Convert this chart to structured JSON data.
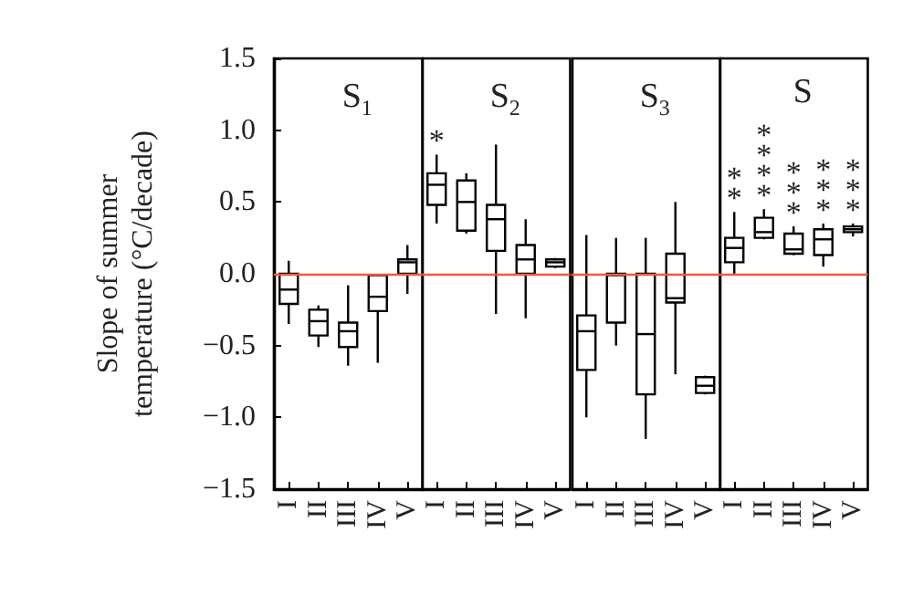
{
  "chart_data": [
    {
      "type": "box",
      "title": "S$_{1}$",
      "ylabel": "Slope of summer temperature (°C/decade)",
      "categories": [
        "I",
        "II",
        "III",
        "IV",
        "V"
      ],
      "color": "#000000",
      "ylim": [
        -1.5,
        1.5
      ],
      "yticks": [
        -1.5,
        {
          "value": -1.0,
          "label": "−1.0"
        },
        -0.5,
        {
          "value": 0,
          "label": "0.0"
        },
        0.5,
        {
          "value": 1,
          "label": "1.0"
        },
        1.5
      ],
      "ref_lines": [
        {
          "axis": "y",
          "value": 0,
          "color": "#f05a3c"
        }
      ],
      "boxes": [
        {
          "low": -0.35,
          "q1": -0.21,
          "median": -0.11,
          "q3": 0.0,
          "high": 0.09
        },
        {
          "low": -0.51,
          "q1": -0.43,
          "median": -0.33,
          "q3": -0.25,
          "high": -0.22
        },
        {
          "low": -0.64,
          "q1": -0.51,
          "median": -0.4,
          "q3": -0.34,
          "high": -0.08
        },
        {
          "low": -0.62,
          "q1": -0.26,
          "median": -0.16,
          "q3": -0.01,
          "high": 0.0
        },
        {
          "low": -0.14,
          "q1": 0.0,
          "median": 0.08,
          "q3": 0.1,
          "high": 0.2
        }
      ]
    },
    {
      "type": "box",
      "title": "S$_{2}$",
      "categories": [
        "I",
        "II",
        "III",
        "IV",
        "V"
      ],
      "color": "#000000",
      "ylim": [
        -1.5,
        1.5
      ],
      "yticks": [
        -1.5,
        -1.0,
        -0.5,
        0.0,
        0.5,
        1.0,
        1.5
      ],
      "tick_labels": "x",
      "ref_lines": [
        {
          "axis": "y",
          "value": 0,
          "color": "#f05a3c"
        }
      ],
      "annotations": [
        "*"
      ],
      "boxes": [
        {
          "low": 0.35,
          "q1": 0.48,
          "median": 0.62,
          "q3": 0.7,
          "high": 0.83
        },
        {
          "low": 0.28,
          "q1": 0.3,
          "median": 0.5,
          "q3": 0.65,
          "high": 0.7
        },
        {
          "low": -0.28,
          "q1": 0.16,
          "median": 0.38,
          "q3": 0.48,
          "high": 0.9
        },
        {
          "low": -0.31,
          "q1": 0.0,
          "median": 0.1,
          "q3": 0.2,
          "high": 0.38
        },
        {
          "low": 0.04,
          "q1": 0.05,
          "median": 0.08,
          "q3": 0.1,
          "high": 0.11
        }
      ]
    },
    {
      "type": "box",
      "title": "S$_{3}$",
      "categories": [
        "I",
        "II",
        "III",
        "IV",
        "V"
      ],
      "color": "#000000",
      "ylim": [
        -1.5,
        1.5
      ],
      "yticks": [
        -1.5,
        -1.0,
        -0.5,
        0.0,
        0.5,
        1.0,
        1.5
      ],
      "tick_labels": "x",
      "ref_lines": [
        {
          "axis": "y",
          "value": 0,
          "color": "#f05a3c"
        }
      ],
      "boxes": [
        {
          "low": -1.0,
          "q1": -0.67,
          "median": -0.4,
          "q3": -0.29,
          "high": 0.27
        },
        {
          "low": -0.5,
          "q1": -0.34,
          "median": -0.01,
          "q3": 0.0,
          "high": 0.25
        },
        {
          "low": -1.15,
          "q1": -0.84,
          "median": -0.42,
          "q3": 0.0,
          "high": 0.25
        },
        {
          "low": -0.7,
          "q1": -0.2,
          "median": -0.17,
          "q3": 0.14,
          "high": 0.5
        },
        {
          "low": -0.84,
          "q1": -0.83,
          "median": -0.78,
          "q3": -0.72,
          "high": -0.71
        }
      ]
    },
    {
      "type": "box",
      "title": "S",
      "categories": [
        "I",
        "II",
        "III",
        "IV",
        "V"
      ],
      "color": "#000000",
      "ylim": [
        -1.5,
        1.5
      ],
      "yticks": [
        -1.5,
        -1.0,
        -0.5,
        0.0,
        0.5,
        1.0,
        1.5
      ],
      "tick_labels": "x",
      "ref_lines": [
        {
          "axis": "y",
          "value": 0,
          "color": "#f05a3c"
        }
      ],
      "annotations": [
        "**",
        "****",
        "***",
        "***",
        "***"
      ],
      "boxes": [
        {
          "low": 0.0,
          "q1": 0.08,
          "median": 0.18,
          "q3": 0.25,
          "high": 0.43
        },
        {
          "low": 0.24,
          "q1": 0.25,
          "median": 0.29,
          "q3": 0.39,
          "high": 0.45
        },
        {
          "low": 0.13,
          "q1": 0.14,
          "median": 0.17,
          "q3": 0.28,
          "high": 0.33
        },
        {
          "low": 0.05,
          "q1": 0.13,
          "median": 0.24,
          "q3": 0.31,
          "high": 0.35
        },
        {
          "low": 0.26,
          "q1": 0.29,
          "median": 0.31,
          "q3": 0.33,
          "high": 0.35
        }
      ]
    }
  ]
}
